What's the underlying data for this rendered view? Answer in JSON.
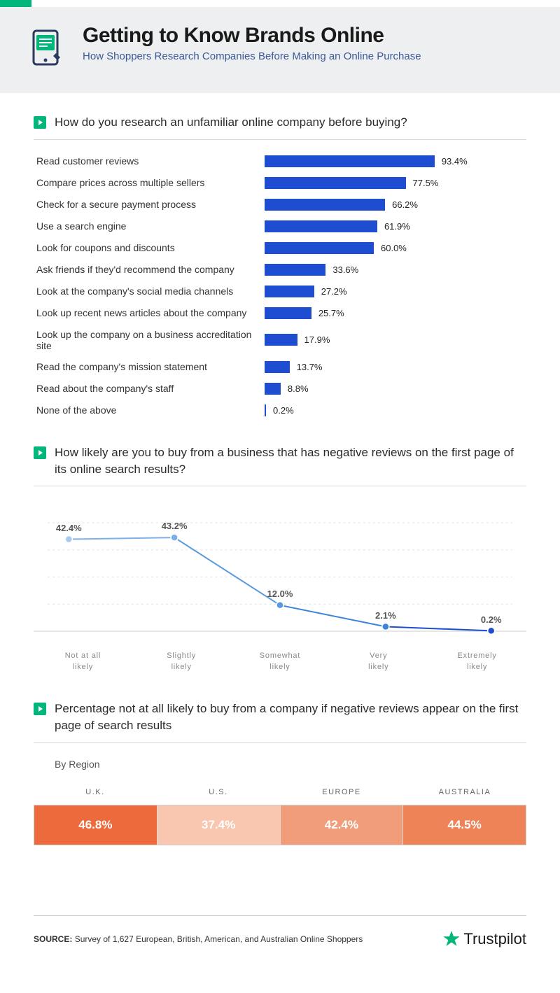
{
  "header": {
    "title": "Getting to Know Brands Online",
    "subtitle": "How Shoppers Research Companies Before Making an Online Purchase",
    "icon_bg": "#00b67a",
    "icon_stroke": "#2a3b5f"
  },
  "bar_chart": {
    "title": "How do you research an unfamiliar online company before buying?",
    "bar_color": "#1f4dd1",
    "max_percent": 100,
    "label_fontsize": 14,
    "value_fontsize": 13,
    "rows": [
      {
        "label": "Read customer reviews",
        "value": 93.4,
        "display": "93.4%"
      },
      {
        "label": "Compare prices across multiple sellers",
        "value": 77.5,
        "display": "77.5%"
      },
      {
        "label": "Check for a secure payment process",
        "value": 66.2,
        "display": "66.2%"
      },
      {
        "label": "Use a search engine",
        "value": 61.9,
        "display": "61.9%"
      },
      {
        "label": "Look for coupons and discounts",
        "value": 60.0,
        "display": "60.0%"
      },
      {
        "label": "Ask friends if they'd recommend the company",
        "value": 33.6,
        "display": "33.6%"
      },
      {
        "label": "Look at the company's social media channels",
        "value": 27.2,
        "display": "27.2%"
      },
      {
        "label": "Look up recent news articles about the company",
        "value": 25.7,
        "display": "25.7%"
      },
      {
        "label": "Look up the company on a business accreditation site",
        "value": 17.9,
        "display": "17.9%"
      },
      {
        "label": "Read the company's mission statement",
        "value": 13.7,
        "display": "13.7%"
      },
      {
        "label": "Read about the company's staff",
        "value": 8.8,
        "display": "8.8%"
      },
      {
        "label": "None of the above",
        "value": 0.2,
        "display": "0.2%"
      }
    ]
  },
  "line_chart": {
    "title": "How likely are you to buy from a business that has negative reviews on the first page of its online search results?",
    "type": "line",
    "ylim": [
      0,
      50
    ],
    "grid_color": "#e0e0e0",
    "axis_color": "#cccccc",
    "marker_radius": 5,
    "line_width": 2,
    "value_fontsize": 13,
    "value_color": "#555555",
    "xlabel_fontsize": 11,
    "xlabel_color": "#888888",
    "points": [
      {
        "x": 0,
        "label": "Not at all\nlikely",
        "value": 42.4,
        "display": "42.4%",
        "color": "#a9c9ed"
      },
      {
        "x": 1,
        "label": "Slightly\nlikely",
        "value": 43.2,
        "display": "43.2%",
        "color": "#7bb0e8"
      },
      {
        "x": 2,
        "label": "Somewhat\nlikely",
        "value": 12.0,
        "display": "12.0%",
        "color": "#5a99e0"
      },
      {
        "x": 3,
        "label": "Very\nlikely",
        "value": 2.1,
        "display": "2.1%",
        "color": "#3b82d8"
      },
      {
        "x": 4,
        "label": "Extremely\nlikely",
        "value": 0.2,
        "display": "0.2%",
        "color": "#1f4dd1"
      }
    ]
  },
  "region_chart": {
    "title": "Percentage not at all likely to buy from a company if negative reviews appear on the first page of search results",
    "subtitle": "By Region",
    "border_color": "#d0d0d0",
    "head_fontsize": 11,
    "head_color": "#666666",
    "value_fontsize": 17,
    "value_color": "#ffffff",
    "cells": [
      {
        "label": "U.K.",
        "value": "46.8%",
        "bg": "#ec6a3b"
      },
      {
        "label": "U.S.",
        "value": "37.4%",
        "bg": "#f9c6af"
      },
      {
        "label": "EUROPE",
        "value": "42.4%",
        "bg": "#f19d7a"
      },
      {
        "label": "AUSTRALIA",
        "value": "44.5%",
        "bg": "#ef8358"
      }
    ]
  },
  "footer": {
    "source_label": "SOURCE:",
    "source_text": "Survey of 1,627 European, British, American, and Australian Online Shoppers",
    "logo_text": "Trustpilot",
    "star_color": "#00b67a"
  }
}
